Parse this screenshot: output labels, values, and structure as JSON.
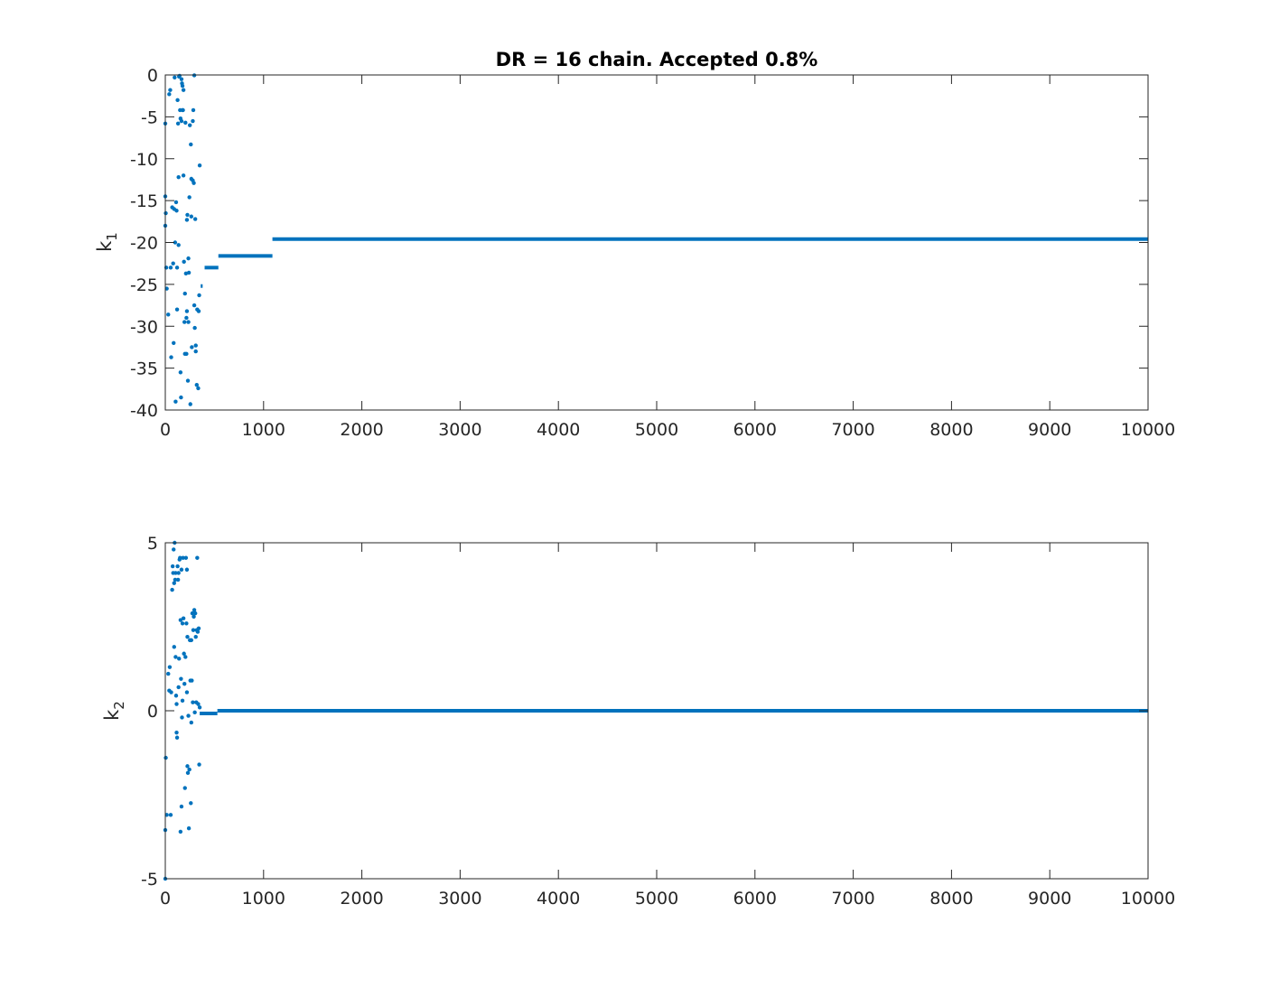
{
  "colors": {
    "series": "#0072BD",
    "axes": "#262626",
    "background": "#ffffff"
  },
  "chart_data": [
    {
      "type": "scatter",
      "title": "DR = 16 chain. Accepted 0.8%",
      "xlabel": "",
      "ylabel": {
        "main": "k",
        "sub": "1"
      },
      "xlim": [
        0,
        10000
      ],
      "ylim": [
        -40,
        0
      ],
      "xticks": [
        0,
        1000,
        2000,
        3000,
        4000,
        5000,
        6000,
        7000,
        8000,
        9000,
        10000
      ],
      "yticks": [
        0,
        -5,
        -10,
        -15,
        -20,
        -25,
        -30,
        -35,
        -40
      ],
      "grid": false,
      "series": [
        {
          "points": [
            [
              0,
              -5.8
            ],
            [
              0,
              -14.5
            ],
            [
              0,
              -18
            ],
            [
              5,
              -16.5
            ],
            [
              10,
              -23
            ],
            [
              15,
              -25.5
            ],
            [
              30,
              -28.6
            ],
            [
              40,
              -2.3
            ],
            [
              50,
              -1.8
            ],
            [
              55,
              -23
            ],
            [
              60,
              -33.7
            ],
            [
              70,
              -15.8
            ],
            [
              80,
              -22.5
            ],
            [
              85,
              -32
            ],
            [
              90,
              -16
            ],
            [
              95,
              -0.3
            ],
            [
              100,
              -20
            ],
            [
              105,
              -39
            ],
            [
              110,
              -15.2
            ],
            [
              115,
              -16.2
            ],
            [
              120,
              -23
            ],
            [
              120,
              -28
            ],
            [
              125,
              -3
            ],
            [
              130,
              -5.8
            ],
            [
              135,
              -12.2
            ],
            [
              135,
              -20.3
            ],
            [
              140,
              -0.2
            ],
            [
              145,
              -0.1
            ],
            [
              150,
              -4.2
            ],
            [
              155,
              -5.2
            ],
            [
              155,
              -35.5
            ],
            [
              160,
              -38.5
            ],
            [
              165,
              -0.5
            ],
            [
              165,
              -5.5
            ],
            [
              170,
              -1
            ],
            [
              175,
              -1.3
            ],
            [
              175,
              -4.2
            ],
            [
              180,
              -4.2
            ],
            [
              185,
              -1.8
            ],
            [
              185,
              -12
            ],
            [
              190,
              -22.3
            ],
            [
              195,
              -29.5
            ],
            [
              200,
              -26.1
            ],
            [
              200,
              -33.3
            ],
            [
              205,
              -5.7
            ],
            [
              210,
              -23.7
            ],
            [
              215,
              -29
            ],
            [
              215,
              -33.3
            ],
            [
              220,
              -17.3
            ],
            [
              220,
              -28.2
            ],
            [
              225,
              -16.7
            ],
            [
              230,
              -36.5
            ],
            [
              235,
              -21.9
            ],
            [
              235,
              -29.5
            ],
            [
              240,
              -23.6
            ],
            [
              245,
              -14.6
            ],
            [
              250,
              -6
            ],
            [
              255,
              -39.3
            ],
            [
              260,
              -8.3
            ],
            [
              265,
              -12.4
            ],
            [
              265,
              -16.9
            ],
            [
              270,
              -32.5
            ],
            [
              280,
              -12.6
            ],
            [
              280,
              -5.5
            ],
            [
              285,
              -4.2
            ],
            [
              290,
              -12.9
            ],
            [
              295,
              -0.05
            ],
            [
              295,
              -27.5
            ],
            [
              300,
              -30.2
            ],
            [
              305,
              -17.2
            ],
            [
              310,
              -32.3
            ],
            [
              310,
              -33
            ],
            [
              320,
              -37
            ],
            [
              325,
              -28
            ],
            [
              335,
              -37.4
            ],
            [
              340,
              -28.2
            ],
            [
              345,
              -26.3
            ],
            [
              350,
              -10.8
            ]
          ],
          "segments": [
            {
              "x": [
                360,
                380
              ],
              "y": -25.2
            },
            {
              "x": [
                400,
                540
              ],
              "y": -23.0
            },
            {
              "x": [
                540,
                1090
              ],
              "y": -21.6
            },
            {
              "x": [
                1090,
                10000
              ],
              "y": -19.6
            }
          ]
        }
      ]
    },
    {
      "type": "scatter",
      "title": "",
      "xlabel": "",
      "ylabel": {
        "main": "k",
        "sub": "2"
      },
      "xlim": [
        0,
        10000
      ],
      "ylim": [
        -5,
        5
      ],
      "xticks": [
        0,
        1000,
        2000,
        3000,
        4000,
        5000,
        6000,
        7000,
        8000,
        9000,
        10000
      ],
      "yticks": [
        5,
        0,
        -5
      ],
      "grid": false,
      "series": [
        {
          "points": [
            [
              0,
              -5
            ],
            [
              0,
              -3.55
            ],
            [
              5,
              -1.4
            ],
            [
              15,
              -3.1
            ],
            [
              30,
              1.1
            ],
            [
              40,
              0.6
            ],
            [
              45,
              1.3
            ],
            [
              55,
              -3.1
            ],
            [
              60,
              0.55
            ],
            [
              70,
              3.6
            ],
            [
              75,
              4.3
            ],
            [
              80,
              4.1
            ],
            [
              85,
              4.8
            ],
            [
              90,
              3.8
            ],
            [
              90,
              1.9
            ],
            [
              95,
              5.0
            ],
            [
              100,
              3.9
            ],
            [
              105,
              4.1
            ],
            [
              105,
              1.6
            ],
            [
              110,
              0.45
            ],
            [
              115,
              0.2
            ],
            [
              115,
              -0.65
            ],
            [
              120,
              -0.8
            ],
            [
              125,
              4.3
            ],
            [
              130,
              3.9
            ],
            [
              135,
              4.1
            ],
            [
              135,
              0.7
            ],
            [
              140,
              1.55
            ],
            [
              145,
              4.5
            ],
            [
              150,
              4.55
            ],
            [
              155,
              2.7
            ],
            [
              155,
              -3.6
            ],
            [
              160,
              0.95
            ],
            [
              165,
              4.2
            ],
            [
              165,
              -2.85
            ],
            [
              170,
              -0.2
            ],
            [
              175,
              2.6
            ],
            [
              175,
              0.3
            ],
            [
              180,
              4.55
            ],
            [
              185,
              2.75
            ],
            [
              190,
              1.7
            ],
            [
              195,
              0.8
            ],
            [
              200,
              -2.3
            ],
            [
              205,
              1.6
            ],
            [
              210,
              4.55
            ],
            [
              215,
              2.6
            ],
            [
              220,
              4.2
            ],
            [
              220,
              0.55
            ],
            [
              225,
              2.2
            ],
            [
              225,
              -1.65
            ],
            [
              230,
              -1.85
            ],
            [
              235,
              -0.15
            ],
            [
              240,
              -3.5
            ],
            [
              245,
              -1.75
            ],
            [
              250,
              2.1
            ],
            [
              255,
              0.9
            ],
            [
              260,
              -2.75
            ],
            [
              265,
              2.1
            ],
            [
              265,
              -0.35
            ],
            [
              270,
              0.9
            ],
            [
              275,
              2.9
            ],
            [
              280,
              0.25
            ],
            [
              285,
              2.4
            ],
            [
              290,
              2.8
            ],
            [
              295,
              3.0
            ],
            [
              300,
              -0.05
            ],
            [
              305,
              2.9
            ],
            [
              310,
              2.2
            ],
            [
              315,
              0.25
            ],
            [
              320,
              2.4
            ],
            [
              325,
              4.55
            ],
            [
              330,
              2.35
            ],
            [
              335,
              0.2
            ],
            [
              340,
              2.45
            ],
            [
              345,
              -1.6
            ],
            [
              350,
              0.1
            ]
          ],
          "segments": [
            {
              "x": [
                350,
                530
              ],
              "y": -0.08
            },
            {
              "x": [
                530,
                10000
              ],
              "y": 0.0
            }
          ]
        }
      ]
    }
  ]
}
